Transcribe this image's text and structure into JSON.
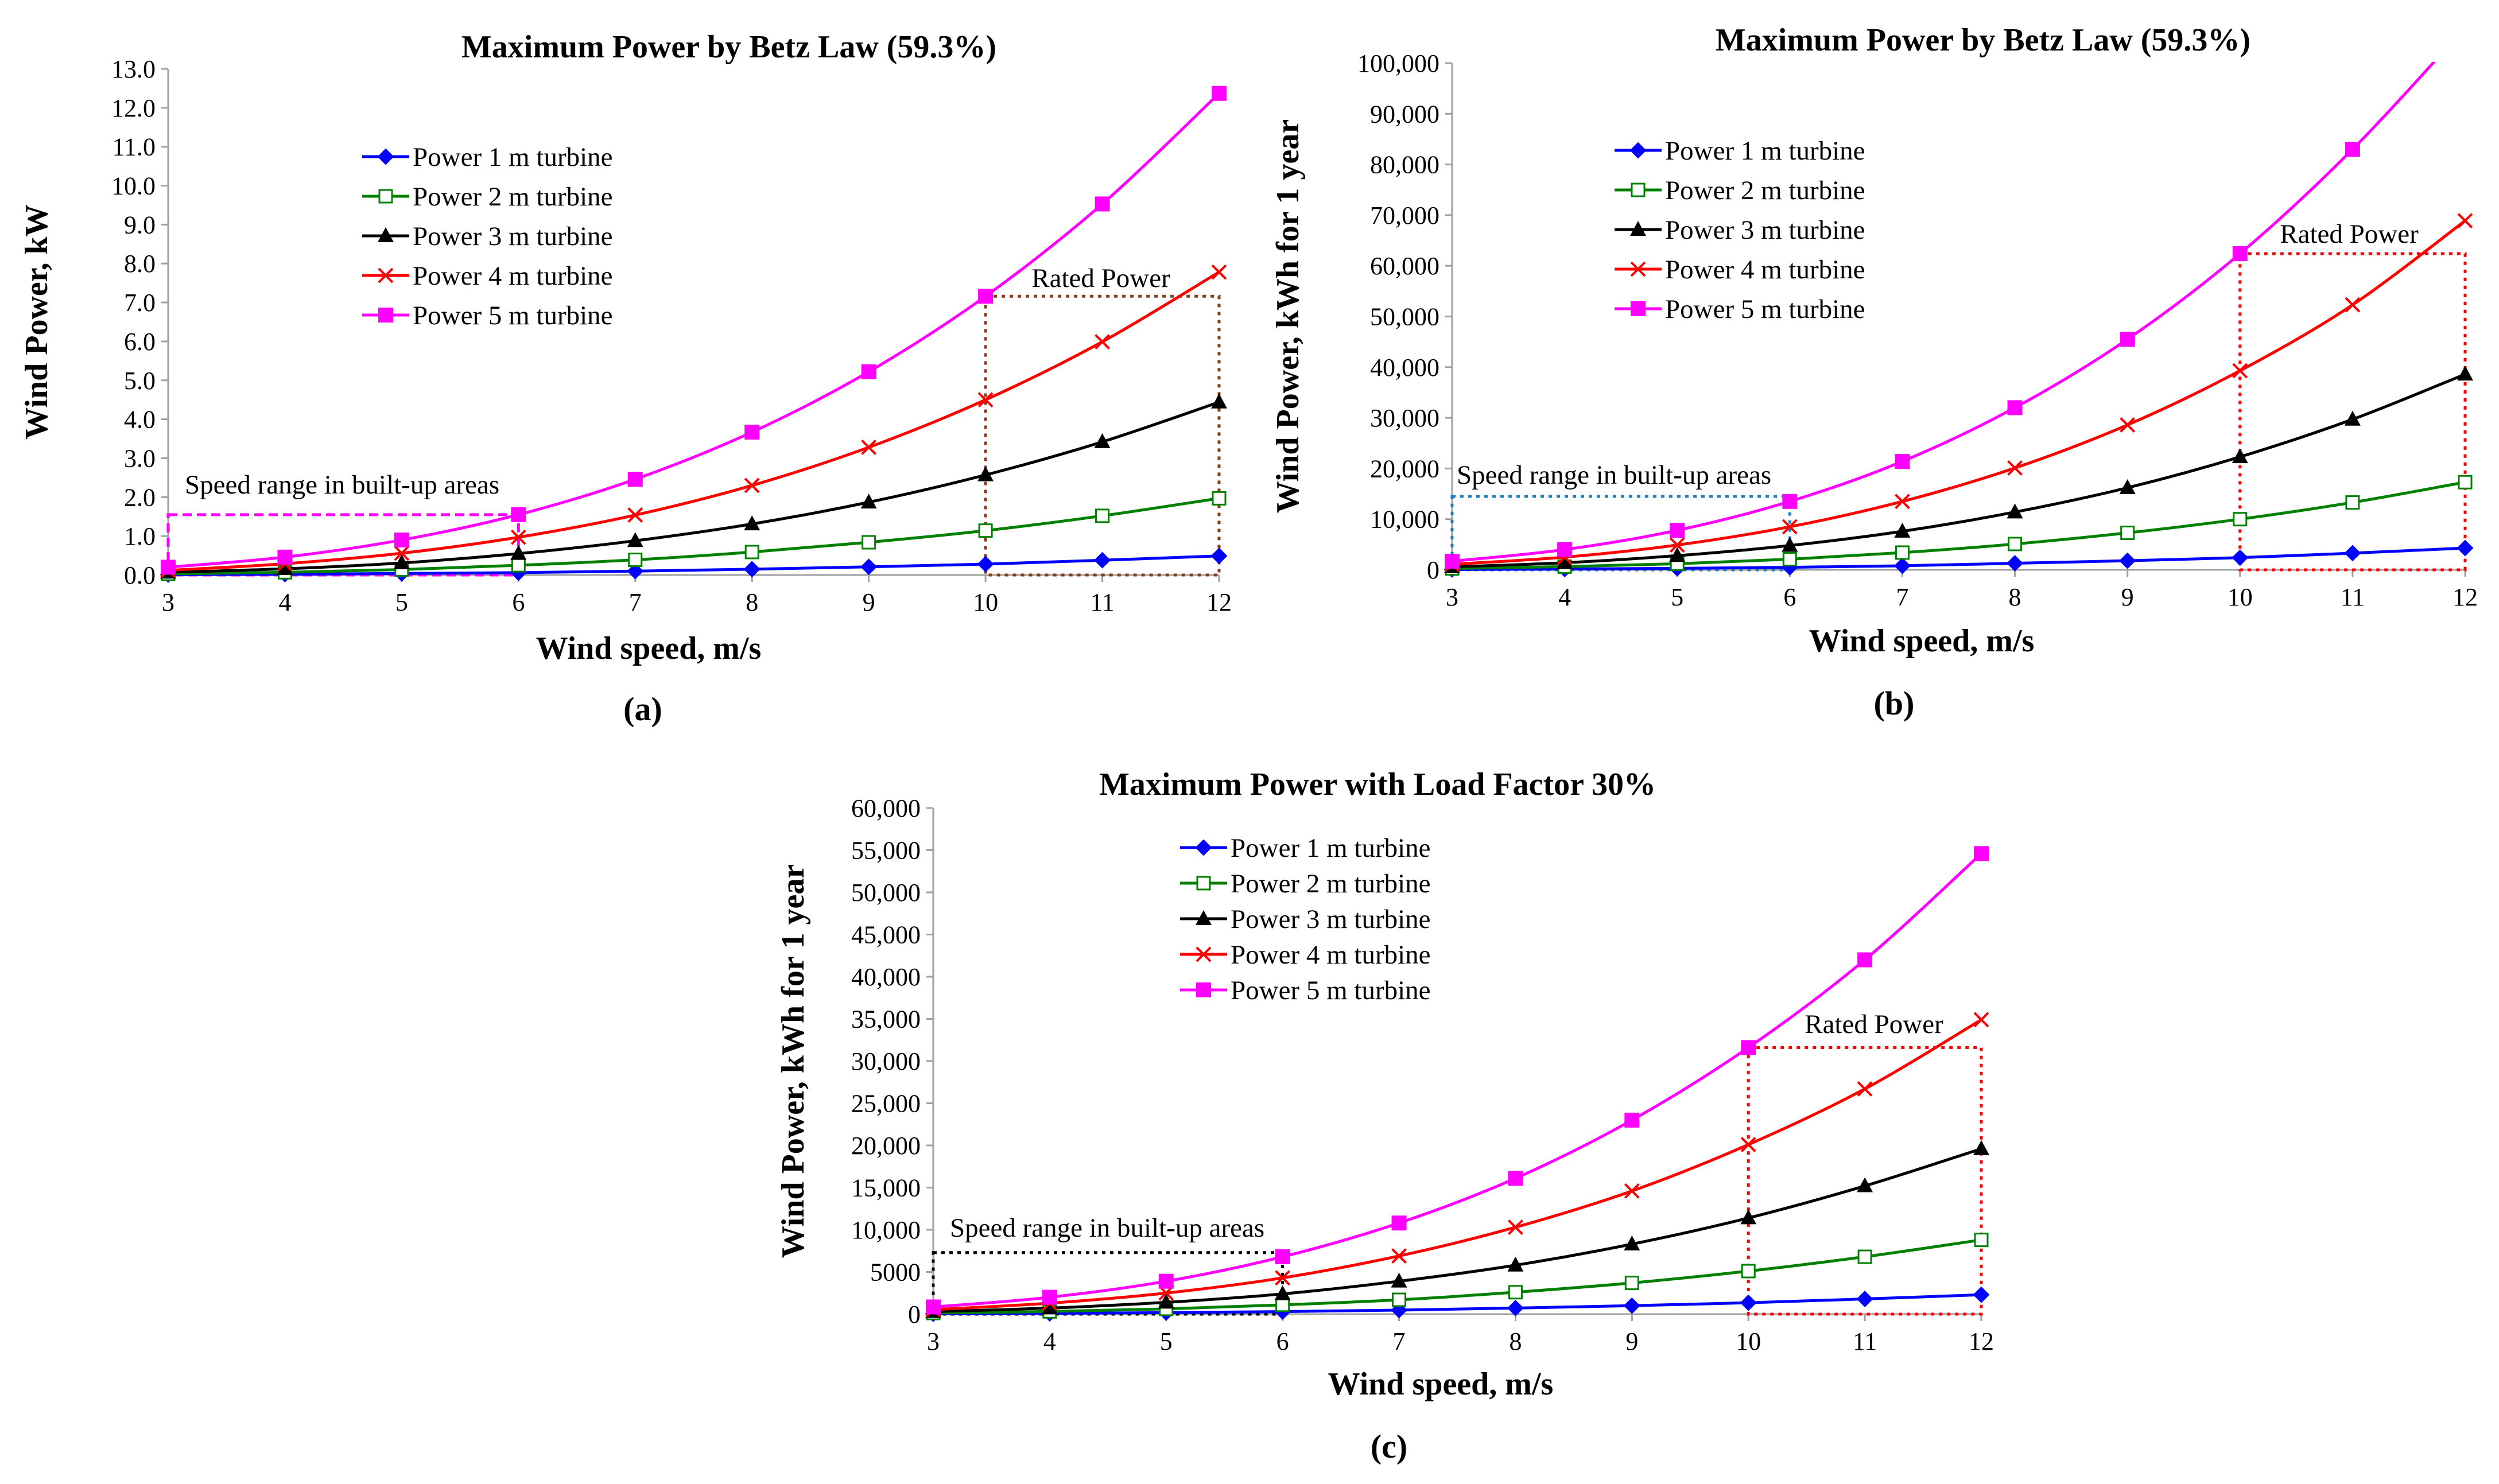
{
  "chart_data": [
    {
      "type": "line",
      "panel_label": "(a)",
      "title": "Maximum Power by Betz Law (59.3%)",
      "xlabel": "Wind speed, m/s",
      "ylabel": "Wind Power, kW",
      "xlim": [
        3,
        12
      ],
      "ylim": [
        0,
        13
      ],
      "x_ticks": [
        "3",
        "4",
        "5",
        "6",
        "7",
        "8",
        "9",
        "10",
        "11",
        "12"
      ],
      "y_ticks": [
        "0.0",
        "1.0",
        "2.0",
        "3.0",
        "4.0",
        "5.0",
        "6.0",
        "7.0",
        "8.0",
        "9.0",
        "10.0",
        "11.0",
        "12.0",
        "13.0"
      ],
      "y_tick_values": [
        0,
        1,
        2,
        3,
        4,
        5,
        6,
        7,
        8,
        9,
        10,
        11,
        12,
        13
      ],
      "x": [
        3,
        4,
        5,
        6,
        7,
        8,
        9,
        10,
        11,
        12
      ],
      "series": [
        {
          "name": "Power 1 m turbine",
          "color": "#0000ff",
          "marker": "diamond",
          "values": [
            0.01,
            0.02,
            0.04,
            0.06,
            0.1,
            0.15,
            0.21,
            0.28,
            0.38,
            0.49
          ]
        },
        {
          "name": "Power 2 m turbine",
          "color": "#008000",
          "marker": "square-open",
          "values": [
            0.03,
            0.07,
            0.14,
            0.25,
            0.39,
            0.59,
            0.84,
            1.14,
            1.52,
            1.97
          ]
        },
        {
          "name": "Power 3 m turbine",
          "color": "#000000",
          "marker": "triangle",
          "values": [
            0.07,
            0.16,
            0.31,
            0.55,
            0.88,
            1.31,
            1.87,
            2.57,
            3.42,
            4.44
          ]
        },
        {
          "name": "Power 4 m turbine",
          "color": "#ff0000",
          "marker": "x",
          "values": [
            0.12,
            0.29,
            0.56,
            0.97,
            1.54,
            2.3,
            3.28,
            4.5,
            5.99,
            7.78
          ]
        },
        {
          "name": "Power 5 m turbine",
          "color": "#ff00ff",
          "marker": "square",
          "values": [
            0.2,
            0.46,
            0.9,
            1.55,
            2.46,
            3.67,
            5.22,
            7.16,
            9.53,
            12.37
          ]
        }
      ],
      "legend_position": "upper-left",
      "annotations": [
        {
          "text": "Speed range in built-up areas",
          "color": "#ff00ff",
          "x_range": [
            3,
            6
          ],
          "y_range": [
            0,
            1.55
          ]
        },
        {
          "text": "Rated Power",
          "color": "#8b3a1a",
          "x_range": [
            10,
            12
          ],
          "y_range": [
            0,
            7.16
          ]
        }
      ]
    },
    {
      "type": "line",
      "panel_label": "(b)",
      "title": "Maximum Power  by Betz Law (59.3%)",
      "xlabel": "Wind speed, m/s",
      "ylabel": "Wind Power, kWh for 1 year",
      "xlim": [
        3,
        12
      ],
      "ylim": [
        0,
        100000
      ],
      "x_ticks": [
        "3",
        "4",
        "5",
        "6",
        "7",
        "8",
        "9",
        "10",
        "11",
        "12"
      ],
      "y_ticks": [
        "0",
        "10,000",
        "20,000",
        "30,000",
        "40,000",
        "50,000",
        "60,000",
        "70,000",
        "80,000",
        "90,000",
        "100,000"
      ],
      "y_tick_values": [
        0,
        10000,
        20000,
        30000,
        40000,
        50000,
        60000,
        70000,
        80000,
        90000,
        100000
      ],
      "x": [
        3,
        4,
        5,
        6,
        7,
        8,
        9,
        10,
        11,
        12
      ],
      "series": [
        {
          "name": "Power 1 m turbine",
          "color": "#0000ff",
          "marker": "diamond",
          "values": [
            70,
            160,
            300,
            500,
            800,
            1300,
            1800,
            2400,
            3300,
            4300
          ]
        },
        {
          "name": "Power 2 m turbine",
          "color": "#008000",
          "marker": "square-open",
          "values": [
            270,
            640,
            1200,
            2100,
            3400,
            5100,
            7300,
            10000,
            13300,
            17300
          ]
        },
        {
          "name": "Power 3 m turbine",
          "color": "#000000",
          "marker": "triangle",
          "values": [
            600,
            1400,
            2800,
            4800,
            7600,
            11400,
            16200,
            22300,
            29700,
            38600
          ]
        },
        {
          "name": "Power 4 m turbine",
          "color": "#ff0000",
          "marker": "x",
          "values": [
            1100,
            2500,
            4900,
            8500,
            13500,
            20100,
            28600,
            39300,
            52300,
            68900
          ]
        },
        {
          "name": "Power 5 m turbine",
          "color": "#ff00ff",
          "marker": "square",
          "values": [
            1700,
            4000,
            7800,
            13500,
            21400,
            32000,
            45500,
            62400,
            83000,
            107000
          ]
        }
      ],
      "legend_position": "upper-left",
      "annotations": [
        {
          "text": "Speed range in built-up areas",
          "color": "#1e7fc0",
          "x_range": [
            3,
            6
          ],
          "y_range": [
            0,
            14500
          ]
        },
        {
          "text": "Rated Power",
          "color": "#ff0000",
          "x_range": [
            10,
            12
          ],
          "y_range": [
            0,
            62400
          ]
        }
      ]
    },
    {
      "type": "line",
      "panel_label": "(c)",
      "title": "Maximum Power with Load Factor 30%",
      "xlabel": "Wind speed, m/s",
      "ylabel": "Wind Power, kWh for 1 year",
      "xlim": [
        3,
        12
      ],
      "ylim": [
        0,
        60000
      ],
      "x_ticks": [
        "3",
        "4",
        "5",
        "6",
        "7",
        "8",
        "9",
        "10",
        "11",
        "12"
      ],
      "y_ticks": [
        "0",
        "5000",
        "10,000",
        "15,000",
        "20,000",
        "25,000",
        "30,000",
        "35,000",
        "40,000",
        "45,000",
        "50,000",
        "55,000",
        "60,000"
      ],
      "y_tick_values": [
        0,
        5000,
        10000,
        15000,
        20000,
        25000,
        30000,
        35000,
        40000,
        45000,
        50000,
        55000,
        60000
      ],
      "x": [
        3,
        4,
        5,
        6,
        7,
        8,
        9,
        10,
        11,
        12
      ],
      "series": [
        {
          "name": "Power 1 m turbine",
          "color": "#0000ff",
          "marker": "diamond",
          "values": [
            40,
            90,
            180,
            300,
            480,
            720,
            1000,
            1350,
            1800,
            2300
          ]
        },
        {
          "name": "Power 2 m turbine",
          "color": "#008000",
          "marker": "square-open",
          "values": [
            130,
            320,
            620,
            1100,
            1700,
            2600,
            3700,
            5100,
            6800,
            8800
          ]
        },
        {
          "name": "Power 3 m turbine",
          "color": "#000000",
          "marker": "triangle",
          "values": [
            300,
            720,
            1400,
            2400,
            3900,
            5800,
            8300,
            11400,
            15200,
            19600
          ]
        },
        {
          "name": "Power 4 m turbine",
          "color": "#ff0000",
          "marker": "x",
          "values": [
            540,
            1300,
            2500,
            4300,
            6900,
            10300,
            14600,
            20100,
            26700,
            34900
          ]
        },
        {
          "name": "Power 5 m turbine",
          "color": "#ff00ff",
          "marker": "square",
          "values": [
            850,
            2000,
            3900,
            6800,
            10800,
            16100,
            23000,
            31600,
            42000,
            54600
          ]
        }
      ],
      "legend_position": "upper-left",
      "annotations": [
        {
          "text": "Speed range in built-up areas",
          "color": "#000000",
          "x_range": [
            3,
            6
          ],
          "y_range": [
            0,
            7300
          ]
        },
        {
          "text": "Rated Power",
          "color": "#ff0000",
          "x_range": [
            10,
            12
          ],
          "y_range": [
            0,
            31600
          ]
        }
      ]
    }
  ]
}
